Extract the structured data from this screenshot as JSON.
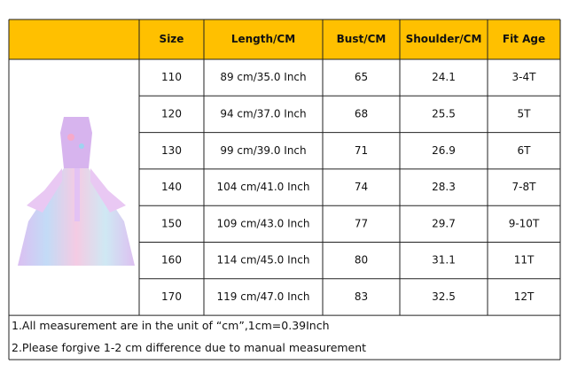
{
  "table": {
    "header": [
      "Size",
      "Length/CM",
      "Bust/CM",
      "Shoulder/CM",
      "Fit Age"
    ],
    "rows": [
      [
        "110",
        "89 cm/35.0 Inch",
        "65",
        "24.1",
        "3-4T"
      ],
      [
        "120",
        "94 cm/37.0 Inch",
        "68",
        "25.5",
        "5T"
      ],
      [
        "130",
        "99 cm/39.0 Inch",
        "71",
        "26.9",
        "6T"
      ],
      [
        "140",
        "104 cm/41.0 Inch",
        "74",
        "28.3",
        "7-8T"
      ],
      [
        "150",
        "109 cm/43.0 Inch",
        "77",
        "29.7",
        "9-10T"
      ],
      [
        "160",
        "114 cm/45.0 Inch",
        "80",
        "31.1",
        "11T"
      ],
      [
        "170",
        "119 cm/47.0 Inch",
        "83",
        "32.5",
        "12T"
      ]
    ]
  },
  "notes": [
    "1.All measurement are in the unit of “cm”,1cm=0.39Inch",
    "2.Please forgive 1-2 cm difference due to manual measurement"
  ]
}
